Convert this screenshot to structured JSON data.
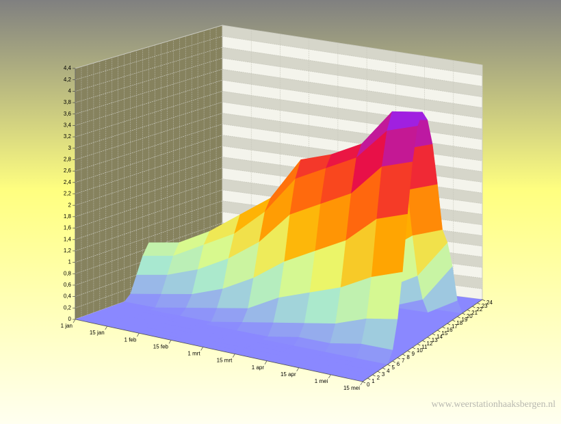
{
  "chart_data": {
    "type": "surface3d",
    "x": [
      "1 jan",
      "15 jan",
      "1 feb",
      "15 feb",
      "1 mrt",
      "15 mrt",
      "1 apr",
      "15 apr",
      "1 mei",
      "15 mei"
    ],
    "hours": [
      0,
      1,
      2,
      3,
      4,
      5,
      6,
      7,
      8,
      9,
      10,
      11,
      12,
      13,
      14,
      15,
      16,
      17,
      18,
      19,
      20,
      21,
      22,
      23,
      24
    ],
    "z": [
      [
        0,
        0,
        0,
        0,
        0,
        0,
        0,
        0,
        0,
        0.1,
        0.4,
        0.7,
        0.9,
        0.7,
        0.4,
        0.1,
        0,
        0,
        0,
        0,
        0,
        0,
        0,
        0,
        0
      ],
      [
        0,
        0,
        0,
        0,
        0,
        0,
        0,
        0,
        0,
        0.2,
        0.5,
        0.8,
        1,
        0.8,
        0.5,
        0.2,
        0,
        0,
        0,
        0,
        0,
        0,
        0,
        0,
        0
      ],
      [
        0,
        0,
        0,
        0,
        0,
        0,
        0,
        0,
        0.1,
        0.3,
        0.7,
        1.1,
        1.3,
        1.1,
        0.7,
        0.3,
        0.1,
        0,
        0,
        0,
        0,
        0,
        0,
        0,
        0
      ],
      [
        0,
        0,
        0,
        0,
        0,
        0,
        0,
        0,
        0.2,
        0.5,
        1,
        1.4,
        1.7,
        1.5,
        1,
        0.5,
        0.2,
        0,
        0,
        0,
        0,
        0,
        0,
        0,
        0
      ],
      [
        0,
        0,
        0,
        0,
        0,
        0,
        0,
        0.1,
        0.3,
        0.8,
        1.4,
        1.9,
        2.1,
        1.9,
        1.4,
        0.8,
        0.3,
        0.1,
        0,
        0,
        0,
        0,
        0,
        0,
        0
      ],
      [
        0,
        0,
        0,
        0,
        0,
        0,
        0,
        0.2,
        0.6,
        1.2,
        2,
        2.6,
        2.9,
        2.7,
        2.1,
        1.3,
        0.6,
        0.2,
        0,
        0,
        0,
        0,
        0,
        0,
        0
      ],
      [
        0,
        0,
        0,
        0,
        0,
        0,
        0.1,
        0.3,
        0.8,
        1.5,
        2.3,
        2.9,
        3.1,
        2.9,
        2.4,
        1.7,
        0.9,
        0.3,
        0.1,
        0,
        0,
        0,
        0,
        0,
        0
      ],
      [
        0,
        0,
        0,
        0,
        0,
        0,
        0.1,
        0.4,
        1,
        1.8,
        2.6,
        3.2,
        3.4,
        3.2,
        2.7,
        2,
        1.2,
        0.5,
        0.1,
        0,
        0,
        0,
        0,
        0,
        0
      ],
      [
        0,
        0,
        0,
        0,
        0,
        0,
        0.2,
        0.6,
        1.3,
        2.3,
        3.2,
        3.8,
        4.1,
        3.9,
        3.3,
        2.5,
        1.6,
        0.8,
        0.3,
        0,
        0,
        0,
        0,
        0,
        0
      ],
      [
        0,
        0,
        0,
        0,
        0,
        0,
        0.2,
        0.7,
        1.5,
        2.5,
        3.4,
        4,
        4.2,
        4,
        3.5,
        2.7,
        1.8,
        1.5,
        1,
        0.3,
        0,
        0,
        0,
        0,
        0
      ]
    ],
    "zlim": [
      0,
      4.4
    ],
    "zticks": [
      0,
      {
        "value": 0.2,
        "label": "0,2"
      },
      {
        "value": 0.4,
        "label": "0,4"
      },
      {
        "value": 0.6,
        "label": "0,6"
      },
      {
        "value": 0.8,
        "label": "0,8"
      },
      1,
      {
        "value": 1.2,
        "label": "1,2"
      },
      {
        "value": 1.4,
        "label": "1,4"
      },
      {
        "value": 1.6,
        "label": "1,6"
      },
      {
        "value": 1.8,
        "label": "1,8"
      },
      2,
      {
        "value": 2.2,
        "label": "2,2"
      },
      {
        "value": 2.4,
        "label": "2,4"
      },
      {
        "value": 2.6,
        "label": "2,6"
      },
      {
        "value": 2.8,
        "label": "2,8"
      },
      3,
      {
        "value": 3.2,
        "label": "3,2"
      },
      {
        "value": 3.4,
        "label": "3,4"
      },
      {
        "value": 3.6,
        "label": "3,6"
      },
      {
        "value": 3.8,
        "label": "3,8"
      },
      4,
      {
        "value": 4.2,
        "label": "4,2"
      },
      {
        "value": 4.4,
        "label": "4,4"
      }
    ],
    "grid": true,
    "colorscale": [
      [
        0,
        "#8a88ff"
      ],
      [
        0.6,
        "#a8e8d0"
      ],
      [
        1.2,
        "#e8ff78"
      ],
      [
        1.8,
        "#ffb000"
      ],
      [
        2.6,
        "#ff5a10"
      ],
      [
        3.2,
        "#e81048"
      ],
      [
        4,
        "#a020e0"
      ]
    ]
  },
  "watermark": "www.weerstationhaaksbergen.nl"
}
